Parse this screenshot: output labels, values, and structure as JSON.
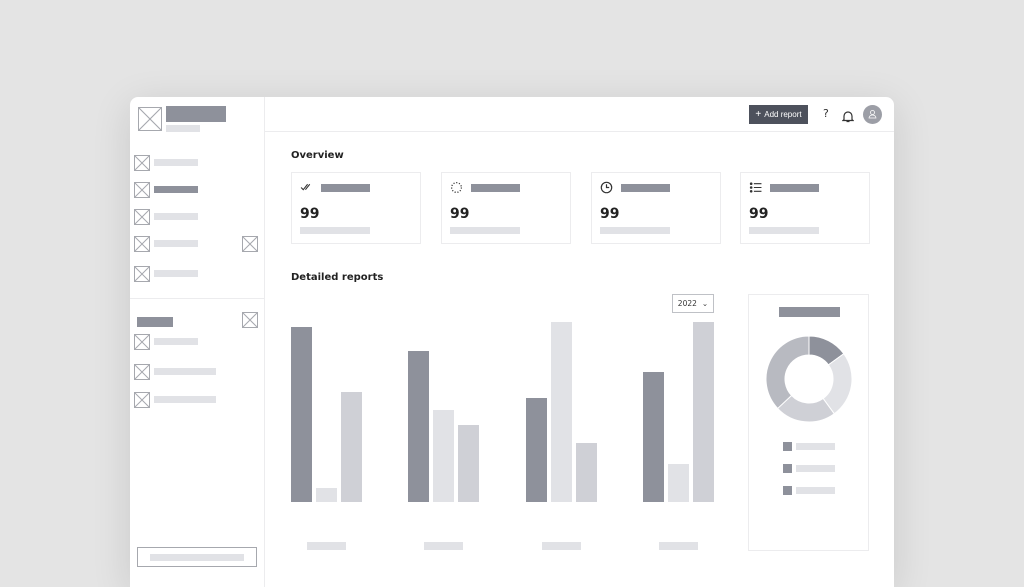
{
  "header": {
    "add_report_label": "Add report",
    "help_icon": "?",
    "icons": [
      "plus-icon",
      "help-icon",
      "bell-icon",
      "user-avatar-icon"
    ],
    "accent": "#4d515c"
  },
  "overview": {
    "title": "Overview",
    "cards": [
      {
        "icon": "double-check-icon",
        "value": "99"
      },
      {
        "icon": "loading-icon",
        "value": "99"
      },
      {
        "icon": "clock-icon",
        "value": "99"
      },
      {
        "icon": "list-icon",
        "value": "99"
      }
    ]
  },
  "reports": {
    "title": "Detailed reports",
    "year_select": "2022"
  },
  "chart_data": [
    {
      "type": "bar",
      "categories": [
        "",
        "",
        "",
        ""
      ],
      "ylim": [
        0,
        100
      ],
      "series": [
        {
          "values": [
            97,
            84,
            58,
            72
          ],
          "color": "#8e919b"
        },
        {
          "values": [
            8,
            51,
            100,
            21
          ],
          "color": "#e1e2e6"
        },
        {
          "values": [
            61,
            43,
            33,
            100
          ],
          "color": "#cfd0d6"
        }
      ]
    },
    {
      "type": "pie",
      "donut": true,
      "values": [
        15,
        25,
        23,
        37
      ],
      "colors": [
        "#8e919b",
        "#e1e2e6",
        "#cfd0d6",
        "#b8bac1"
      ]
    }
  ]
}
